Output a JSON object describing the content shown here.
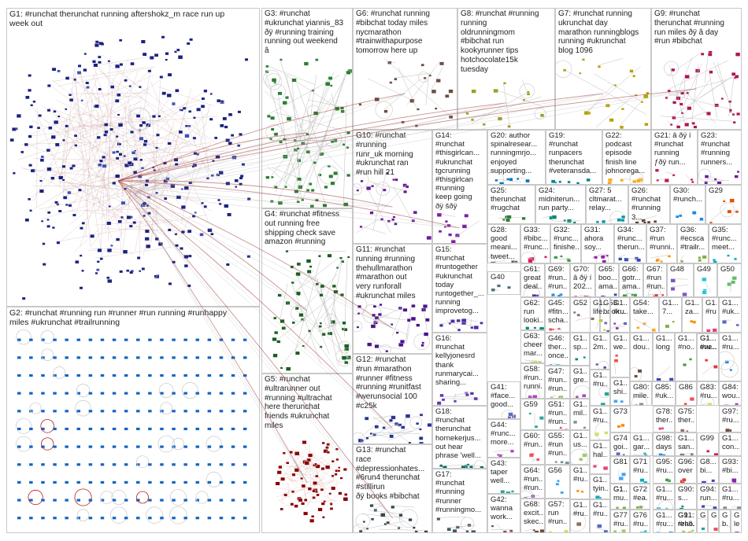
{
  "title": "",
  "groups": [
    {
      "id": "G1",
      "label": "G1: #runchat therunchat running aftershokz_m race run up\nweek out",
      "color": "#1a237e"
    },
    {
      "id": "G2",
      "label": "G2: #runchat #running run #runner #run running #runhappy\nmiles #ukrunchat #trailrunning",
      "color": "#1565c0"
    },
    {
      "id": "G3",
      "label": "G3: #runchat\n#ukrunchat yiannis_83\nðÿ #running training\nrunning out weekend\nâ",
      "color": "#2e7d32"
    },
    {
      "id": "G4",
      "label": "G4: #runchat #fitness\nout running free\nshipping check save\namazon #running",
      "color": "#1b5e20"
    },
    {
      "id": "G5",
      "label": "G5: #runchat\n#ultrarunner out\n#running #ultrachat\nhere therunchat\nfriends #ukrunchat\nmiles",
      "color": "#8b0000"
    },
    {
      "id": "G6",
      "label": "G6: #runchat running\n#bibchat today miles\nnycmarathon\n#trainwithapurpose\ntomorrow here up",
      "color": "#6d4c41"
    },
    {
      "id": "G7",
      "label": "G7: #runchat running\nukrunchat day\nmarathon runningblogs\nrunning #ukrunchat\nblog 1096",
      "color": "#b8a100"
    },
    {
      "id": "G8",
      "label": "G8: #runchat #running\nrunning\noldrunningmom\n#bibchat run\nkookyrunner tips\nhotchocolate15k\ntuesday",
      "color": "#9e9d24"
    },
    {
      "id": "G9",
      "label": "G9: #runchat\ntherunchat #running\nrun miles ðÿ â day\n#run #bibchat",
      "color": "#ad1457"
    },
    {
      "id": "G10",
      "label": "G10: #runchat #running\nrunr_uk morning\n#ukrunchat ran\n#run hill 21",
      "color": "#6a1b9a"
    },
    {
      "id": "G11",
      "label": "G11: #runchat\nrunning #running\nthehullmarathon\n#marathon out\nvery runforall\n#ukrunchat miles",
      "color": "#4a148c"
    },
    {
      "id": "G12",
      "label": "G12: #runchat\n#run #marathon\n#runner #fitness\n#running #runitfast\n#werunsocial 100\n#c25k",
      "color": "#283593"
    },
    {
      "id": "G13",
      "label": "G13: #runchat\nrace\n#depressionhates...\n#6run4 therunchat\n#stillirun\nðÿ books #bibchat",
      "color": "#37474f"
    },
    {
      "id": "G14",
      "label": "G14:\n#runchat\n#thisgirlcan...\n#ukrunchat\ntgcrunning\n#thisgirlcan\n#running\nkeep going\nðÿ šðÿ",
      "color": "#7b1fa2"
    },
    {
      "id": "G15",
      "label": "G15:\n#runchat\n#runtogether\n#ukrunchat\ntoday\nruntogether_...\nrunning\nimprovetog...",
      "color": "#512da8"
    },
    {
      "id": "G16",
      "label": "G16:\n#runchat\nkellyjonesrd\nthank\nrunmarycai...\nsharing...",
      "color": "#5e35b1"
    },
    {
      "id": "G17",
      "label": "G17:\n#runchat\n#running\n#runner\n#runningmo...",
      "color": "#455a64"
    },
    {
      "id": "G18",
      "label": "G18:\n#runchat\ntherunchat\nhornekerjus...\nout hear\nphrase 'well...",
      "color": "#00695c"
    },
    {
      "id": "G19",
      "label": "G19:\n#runchat\nrunpacers\ntherunchat\n#veteransda...",
      "color": "#00838f"
    },
    {
      "id": "G20",
      "label": "G20: author\nspinalresear...\nrunningmrjo...\nenjoyed\nsupporting...",
      "color": "#0277bd"
    },
    {
      "id": "G21",
      "label": "G21: â ðÿ í\n#runchat\nrunning\nƒðÿ run...",
      "color": "#c2185b"
    },
    {
      "id": "G22",
      "label": "G22:\npodcast\nepisode\nfinish line\njohnorega...",
      "color": "#f9a825"
    },
    {
      "id": "G23",
      "label": "G23:\n#runchat\n#running\nrunners...",
      "color": "#6a1b9a"
    },
    {
      "id": "G24",
      "label": "G24:\nmidniterun...\nrun party...",
      "color": "#00897b"
    },
    {
      "id": "G25",
      "label": "G25:\ntherunchat\n#rugchat",
      "color": "#2e7d32"
    },
    {
      "id": "G26",
      "label": "G26:\n#runchat\n#running 3...",
      "color": "#5d4037"
    },
    {
      "id": "G27",
      "label": "G27: 5\ncltmarat...\nrelay...",
      "color": "#0097a7"
    },
    {
      "id": "G28",
      "label": "G28:\ngood\nmeani...\ntweet...",
      "color": "#616161"
    },
    {
      "id": "G29",
      "label": "G29",
      "color": "#e65100"
    },
    {
      "id": "G30",
      "label": "G30:\n#runch...",
      "color": "#1e88e5"
    },
    {
      "id": "G31",
      "label": "G31:\nahora\nsoy...",
      "color": "#8e24aa"
    },
    {
      "id": "G32",
      "label": "G32:\n#runc...\nfinishe...",
      "color": "#43a047"
    },
    {
      "id": "G33",
      "label": "G33:\n#bibc...\n#runc...",
      "color": "#d81b60"
    },
    {
      "id": "G34",
      "label": "G34:\n#runc...\ntherun...",
      "color": "#3949ab"
    },
    {
      "id": "G35",
      "label": "G35:\n#runc...\nmeet...",
      "color": "#00acc1"
    },
    {
      "id": "G36",
      "label": "G36:\n#ecsca\n#trailr...",
      "color": "#7cb342"
    },
    {
      "id": "G37",
      "label": "G37:\n#run\n#runni...",
      "color": "#fb8c00"
    },
    {
      "id": "G40",
      "label": "G40",
      "color": "#546e7a"
    },
    {
      "id": "G41",
      "label": "G41:\n#face...\ngood...",
      "color": "#5c6bc0"
    },
    {
      "id": "G42",
      "label": "G42:\nwanna\nwork...",
      "color": "#795548"
    },
    {
      "id": "G43",
      "label": "G43:\ntaper\nwell...",
      "color": "#26a69a"
    },
    {
      "id": "G44",
      "label": "G44:\n#runc...\nmore...",
      "color": "#ab47bc"
    },
    {
      "id": "G45",
      "label": "G45:\n#fitn...\nscha...",
      "color": "#ef5350"
    },
    {
      "id": "G46",
      "label": "G46:\nther...\nonce...",
      "color": "#29b6f6"
    },
    {
      "id": "G47",
      "label": "G47:\n#run...\n#run...",
      "color": "#9ccc65"
    },
    {
      "id": "G48",
      "label": "G48",
      "color": "#7e57c2"
    },
    {
      "id": "G49",
      "label": "G49",
      "color": "#26c6da"
    },
    {
      "id": "G50",
      "label": "G50",
      "color": "#66bb6a"
    },
    {
      "id": "G51",
      "label": "G51:\n#run...\n#run...",
      "color": "#ec407a"
    },
    {
      "id": "G52",
      "label": "G52",
      "color": "#8d6e63"
    },
    {
      "id": "G53",
      "label": "G53:\nbook...",
      "color": "#5c6bc0"
    },
    {
      "id": "G54",
      "label": "G54:\ntake...",
      "color": "#ffa726"
    },
    {
      "id": "G55",
      "label": "G55:\n#run\n#run...",
      "color": "#78909c"
    },
    {
      "id": "G56",
      "label": "G56",
      "color": "#42a5f5"
    },
    {
      "id": "G57",
      "label": "G57:\nrun\n#run...",
      "color": "#d4e157"
    },
    {
      "id": "G58",
      "label": "G58:\n#run...\nrunni...",
      "color": "#ab47bc"
    },
    {
      "id": "G59",
      "label": "G59",
      "color": "#26a69a"
    },
    {
      "id": "G60",
      "label": "G60:\n#run...",
      "color": "#ef5350"
    },
    {
      "id": "G61",
      "label": "G61:\ngreat\ndeal...",
      "color": "#5e35b1"
    },
    {
      "id": "G62",
      "label": "G62:\nrun\nlooki...",
      "color": "#00897b"
    },
    {
      "id": "G63",
      "label": "G63:\ncheer\nmar...",
      "color": "#c0ca33"
    },
    {
      "id": "G64",
      "label": "G64:\n#run...\n#run...",
      "color": "#8e24aa"
    },
    {
      "id": "G65",
      "label": "G65:\nboo...\nama...",
      "color": "#3949ab"
    },
    {
      "id": "G66",
      "label": "G66:\ngotr...\nama...",
      "color": "#43a047"
    },
    {
      "id": "G67",
      "label": "G67:\n#run\n#run...",
      "color": "#e53935"
    },
    {
      "id": "G68",
      "label": "G68:\nexcit...\nskec...",
      "color": "#6d4c41"
    },
    {
      "id": "G69",
      "label": "G69:\n#run...\n#run...",
      "color": "#1e88e5"
    },
    {
      "id": "G70",
      "label": "G70:\nâ ðÿ í\n202...",
      "color": "#d81b60"
    },
    {
      "id": "G71",
      "label": "G71:\n#ru...",
      "color": "#00acc1"
    },
    {
      "id": "G72",
      "label": "G72:\n#ea...",
      "color": "#7cb342"
    },
    {
      "id": "G73",
      "label": "G73",
      "color": "#fb8c00"
    },
    {
      "id": "G74",
      "label": "G74:\ngoi...",
      "color": "#5c6bc0"
    },
    {
      "id": "G75",
      "label": "G75:\nther...",
      "color": "#8d6e63"
    },
    {
      "id": "G76",
      "label": "G76:\n#ru...",
      "color": "#26c6da"
    },
    {
      "id": "G77",
      "label": "G77:\n#ru...",
      "color": "#9ccc65"
    },
    {
      "id": "G78",
      "label": "G78:\nther...",
      "color": "#ec407a"
    },
    {
      "id": "G80",
      "label": "G80:\nmile...",
      "color": "#78909c"
    },
    {
      "id": "G81",
      "label": "G81",
      "color": "#42a5f5"
    },
    {
      "id": "G83",
      "label": "G83:\n#ru...",
      "color": "#d4e157"
    },
    {
      "id": "G84",
      "label": "G84:\nwou...",
      "color": "#ab47bc"
    },
    {
      "id": "G85",
      "label": "G85:\n#uk...",
      "color": "#26a69a"
    },
    {
      "id": "G86",
      "label": "G86",
      "color": "#ef5350"
    },
    {
      "id": "G88",
      "label": "G8...\nbi...",
      "color": "#5e35b1"
    },
    {
      "id": "G90",
      "label": "G90:\ns...",
      "color": "#00897b"
    },
    {
      "id": "G91",
      "label": "G91:\n#rho...",
      "color": "#c0ca33"
    },
    {
      "id": "G93",
      "label": "G93:\n#bi...",
      "color": "#8e24aa"
    },
    {
      "id": "G94",
      "label": "G94:\nrun...",
      "color": "#3949ab"
    },
    {
      "id": "G95",
      "label": "G95:\n#ru...",
      "color": "#43a047"
    },
    {
      "id": "G96",
      "label": "G96:\nover",
      "color": "#e53935"
    },
    {
      "id": "G97",
      "label": "G97:\n#ru...",
      "color": "#6d4c41"
    },
    {
      "id": "G98",
      "label": "G98:\ndays",
      "color": "#1e88e5"
    },
    {
      "id": "G99",
      "label": "G99",
      "color": "#d81b60"
    },
    {
      "id": "Ga1",
      "label": "G1...\ntyin...",
      "color": "#00acc1"
    },
    {
      "id": "Ga2",
      "label": "G1...\nmu...",
      "color": "#7cb342"
    },
    {
      "id": "Ga3",
      "label": "G1...\n#ru...",
      "color": "#fb8c00"
    },
    {
      "id": "Ga4",
      "label": "G1...\n#ru...",
      "color": "#5c6bc0"
    },
    {
      "id": "Ga5",
      "label": "G1...\n#ru...",
      "color": "#8d6e63"
    },
    {
      "id": "Ga6",
      "label": "G1...\n#ru...",
      "color": "#26c6da"
    },
    {
      "id": "Ga7",
      "label": "G1...\nus...",
      "color": "#9ccc65"
    },
    {
      "id": "Ga8",
      "label": "G1...\nhal...",
      "color": "#ec407a"
    },
    {
      "id": "Ga9",
      "label": "G1...\nmil...",
      "color": "#78909c"
    },
    {
      "id": "Gb1",
      "label": "G1...\nshi...",
      "color": "#42a5f5"
    },
    {
      "id": "Gb2",
      "label": "G1...\n#ru...",
      "color": "#d4e157"
    },
    {
      "id": "Gb3",
      "label": "G1...\ngre...",
      "color": "#ab47bc"
    },
    {
      "id": "Gb4",
      "label": "G1...\n#ru...",
      "color": "#26a69a"
    },
    {
      "id": "Gb5",
      "label": "G1...\nwe...",
      "color": "#ef5350"
    },
    {
      "id": "Gb6",
      "label": "G1...\n2m...",
      "color": "#5e35b1"
    },
    {
      "id": "Gb7",
      "label": "G1...\nsp...",
      "color": "#00897b"
    },
    {
      "id": "Gb8",
      "label": "G1...\nlife...",
      "color": "#c0ca33"
    },
    {
      "id": "Gb9",
      "label": "G1...\n#ru...",
      "color": "#8e24aa"
    },
    {
      "id": "Gc1",
      "label": "G1...\nlong",
      "color": "#3949ab"
    },
    {
      "id": "Gc2",
      "label": "G1...\n#no...",
      "color": "#43a047"
    },
    {
      "id": "Gc3",
      "label": "G1...\neve...",
      "color": "#e53935"
    },
    {
      "id": "Gc4",
      "label": "G1...\ndou...",
      "color": "#6d4c41"
    },
    {
      "id": "Gc5",
      "label": "G1...\n#ru...",
      "color": "#1e88e5"
    },
    {
      "id": "Gc6",
      "label": "G1...\nlittle...",
      "color": "#d81b60"
    },
    {
      "id": "Gc7",
      "label": "G1...\ngar...",
      "color": "#00acc1"
    },
    {
      "id": "Gc8",
      "label": "G1...\n7...",
      "color": "#7cb342"
    },
    {
      "id": "Gc9",
      "label": "G1...\nza...",
      "color": "#fb8c00"
    },
    {
      "id": "Gd1",
      "label": "G1...\n#uk...",
      "color": "#5c6bc0"
    },
    {
      "id": "Gd2",
      "label": "G1...\nsan...",
      "color": "#8d6e63"
    },
    {
      "id": "Gd3",
      "label": "G1...\ncon...",
      "color": "#26c6da"
    },
    {
      "id": "Gd4",
      "label": "G1...\nreall...",
      "color": "#9ccc65"
    },
    {
      "id": "Gd5",
      "label": "G1...\n#ru...",
      "color": "#ec407a"
    },
    {
      "id": "Gd6",
      "label": "G1...\n#ru...",
      "color": "#78909c"
    },
    {
      "id": "Gd7",
      "label": "G1...\n#ru...",
      "color": "#42a5f5"
    },
    {
      "id": "Gd8",
      "label": "G...\nb...",
      "color": "#d4e157"
    },
    {
      "id": "Gd9",
      "label": "G...\nle...",
      "color": "#ab47bc"
    },
    {
      "id": "Ge1",
      "label": "G...",
      "color": "#26a69a"
    },
    {
      "id": "Ge2",
      "label": "G...",
      "color": "#ef5350"
    },
    {
      "id": "Ge3",
      "label": "G1...\n#ru...",
      "color": "#5e35b1"
    },
    {
      "id": "Ge4",
      "label": "G1...",
      "color": "#00897b"
    },
    {
      "id": "Ge5",
      "label": "G1...",
      "color": "#c0ca33"
    },
    {
      "id": "Ge6",
      "label": "G1...",
      "color": "#8e24aa"
    }
  ]
}
